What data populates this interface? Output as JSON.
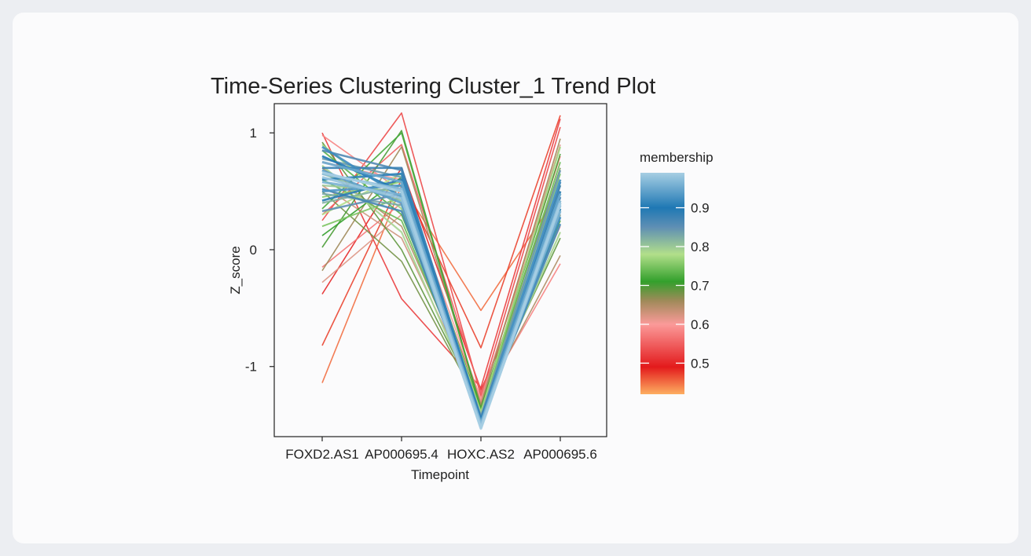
{
  "chart_data": {
    "type": "line",
    "title": "Time-Series Clustering Cluster_1 Trend Plot",
    "xlabel": "Timepoint",
    "ylabel": "Z_score",
    "x": [
      "FOXD2.AS1",
      "AP000695.4",
      "HOXC.AS2",
      "AP000695.6"
    ],
    "ylim": [
      -1.6,
      1.25
    ],
    "yticks": [
      1,
      0,
      -1
    ],
    "ytick_labels": [
      "1",
      "0",
      "-1"
    ],
    "grid": false,
    "legend": {
      "title": "membership",
      "placement": "right",
      "range": [
        0.42,
        0.99
      ],
      "ticks": [
        0.9,
        0.8,
        0.7,
        0.6,
        0.5
      ],
      "tick_labels": [
        "0.9",
        "0.8",
        "0.7",
        "0.6",
        "0.5"
      ],
      "gradient": [
        {
          "value": 0.42,
          "color": "#fdae61"
        },
        {
          "value": 0.49,
          "color": "#e31a1c"
        },
        {
          "value": 0.6,
          "color": "#fb9a99"
        },
        {
          "value": 0.66,
          "color": "#a08a5a"
        },
        {
          "value": 0.71,
          "color": "#33a02c"
        },
        {
          "value": 0.78,
          "color": "#b2df8a"
        },
        {
          "value": 0.85,
          "color": "#5f8fb4"
        },
        {
          "value": 0.9,
          "color": "#1f78b4"
        },
        {
          "value": 0.99,
          "color": "#a6cee3"
        }
      ]
    },
    "series": [
      {
        "membership": 0.45,
        "values": [
          -1.14,
          0.55,
          -0.52,
          0.5
        ]
      },
      {
        "membership": 0.47,
        "values": [
          -0.82,
          0.6,
          -0.84,
          1.15
        ]
      },
      {
        "membership": 0.5,
        "values": [
          -0.38,
          0.7,
          -1.2,
          0.3
        ]
      },
      {
        "membership": 0.52,
        "values": [
          1.0,
          -0.42,
          -1.18,
          1.12
        ]
      },
      {
        "membership": 0.53,
        "values": [
          0.25,
          1.17,
          -1.25,
          1.05
        ]
      },
      {
        "membership": 0.55,
        "values": [
          0.3,
          0.9,
          -1.22,
          0.45
        ]
      },
      {
        "membership": 0.57,
        "values": [
          -0.15,
          0.4,
          -1.27,
          0.8
        ]
      },
      {
        "membership": 0.58,
        "values": [
          0.98,
          0.5,
          -1.3,
          -0.12
        ]
      },
      {
        "membership": 0.6,
        "values": [
          0.75,
          0.6,
          -1.28,
          0.2
        ]
      },
      {
        "membership": 0.62,
        "values": [
          -0.28,
          0.3,
          -1.3,
          0.9
        ]
      },
      {
        "membership": 0.63,
        "values": [
          0.55,
          0.1,
          -1.32,
          0.6
        ]
      },
      {
        "membership": 0.65,
        "values": [
          0.7,
          0.2,
          -1.33,
          -0.05
        ]
      },
      {
        "membership": 0.66,
        "values": [
          -0.18,
          0.88,
          -1.33,
          0.95
        ]
      },
      {
        "membership": 0.68,
        "values": [
          0.5,
          -0.1,
          -1.35,
          0.7
        ]
      },
      {
        "membership": 0.69,
        "values": [
          0.92,
          0.0,
          -1.35,
          0.1
        ]
      },
      {
        "membership": 0.7,
        "values": [
          0.02,
          1.02,
          -1.36,
          0.82
        ]
      },
      {
        "membership": 0.71,
        "values": [
          0.12,
          0.62,
          -1.37,
          0.4
        ]
      },
      {
        "membership": 0.72,
        "values": [
          0.35,
          1.0,
          -1.37,
          0.25
        ]
      },
      {
        "membership": 0.73,
        "values": [
          0.85,
          0.3,
          -1.38,
          0.55
        ]
      },
      {
        "membership": 0.74,
        "values": [
          0.6,
          0.25,
          -1.38,
          0.75
        ]
      },
      {
        "membership": 0.75,
        "values": [
          0.2,
          0.45,
          -1.39,
          0.65
        ]
      },
      {
        "membership": 0.76,
        "values": [
          0.45,
          0.58,
          -1.4,
          0.48
        ]
      },
      {
        "membership": 0.77,
        "values": [
          0.9,
          0.35,
          -1.39,
          0.88
        ]
      },
      {
        "membership": 0.78,
        "values": [
          0.3,
          0.65,
          -1.4,
          0.35
        ]
      },
      {
        "membership": 0.79,
        "values": [
          0.72,
          0.15,
          -1.4,
          0.15
        ]
      },
      {
        "membership": 0.8,
        "values": [
          0.55,
          0.5,
          -1.41,
          0.6
        ]
      },
      {
        "membership": 0.81,
        "values": [
          0.65,
          0.42,
          -1.42,
          0.42
        ]
      },
      {
        "membership": 0.82,
        "values": [
          0.4,
          0.55,
          -1.42,
          0.3
        ]
      },
      {
        "membership": 0.83,
        "values": [
          0.48,
          0.38,
          -1.43,
          0.5
        ]
      },
      {
        "membership": 0.84,
        "values": [
          0.78,
          0.62,
          -1.43,
          0.68
        ]
      },
      {
        "membership": 0.85,
        "values": [
          0.33,
          0.48,
          -1.44,
          0.38
        ]
      },
      {
        "membership": 0.86,
        "values": [
          0.85,
          0.68,
          -1.44,
          0.55
        ]
      },
      {
        "membership": 0.87,
        "values": [
          0.52,
          0.33,
          -1.45,
          0.22
        ]
      },
      {
        "membership": 0.88,
        "values": [
          0.7,
          0.7,
          -1.45,
          0.45
        ]
      },
      {
        "membership": 0.89,
        "values": [
          0.42,
          0.6,
          -1.46,
          0.58
        ]
      },
      {
        "membership": 0.9,
        "values": [
          0.8,
          0.5,
          -1.46,
          0.35
        ]
      },
      {
        "membership": 0.91,
        "values": [
          0.6,
          0.65,
          -1.47,
          0.5
        ]
      },
      {
        "membership": 0.92,
        "values": [
          0.88,
          0.45,
          -1.47,
          0.28
        ]
      },
      {
        "membership": 0.93,
        "values": [
          0.5,
          0.55,
          -1.48,
          0.6
        ]
      },
      {
        "membership": 0.94,
        "values": [
          0.68,
          0.4,
          -1.48,
          0.4
        ]
      },
      {
        "membership": 0.95,
        "values": [
          0.75,
          0.58,
          -1.49,
          0.48
        ]
      },
      {
        "membership": 0.96,
        "values": [
          0.58,
          0.47,
          -1.5,
          0.33
        ]
      },
      {
        "membership": 0.97,
        "values": [
          0.65,
          0.52,
          -1.5,
          0.42
        ]
      },
      {
        "membership": 0.98,
        "values": [
          0.62,
          0.44,
          -1.52,
          0.38
        ]
      },
      {
        "membership": 0.99,
        "values": [
          0.66,
          0.5,
          -1.53,
          0.4
        ]
      }
    ]
  }
}
